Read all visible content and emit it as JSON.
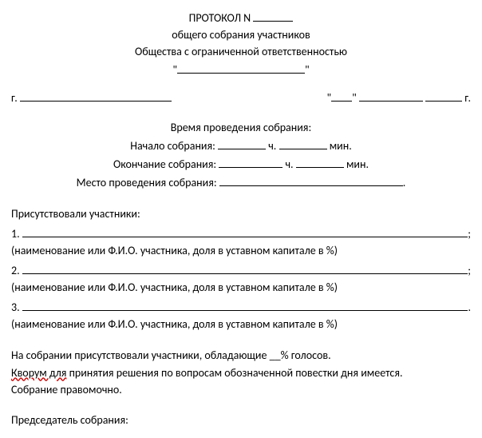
{
  "header": {
    "protocol_label": "ПРОТОКОЛ N",
    "line2": "общего собрания участников",
    "line3": "Общества с ограниченной ответственностью",
    "quote_open": "\"",
    "quote_close": "\""
  },
  "city_prefix": "г.",
  "date": {
    "q1": "\"",
    "q2": "\"",
    "year_suffix": "г."
  },
  "time": {
    "title": "Время проведения собрания:",
    "start_label": "Начало собрания:",
    "end_label": "Окончание собрания:",
    "hour_suffix": "ч.",
    "min_suffix": "мин."
  },
  "place_label": "Место проведения собрания:",
  "attend_title": "Присутствовали участники:",
  "items": {
    "1": "1.",
    "2": "2.",
    "3": "3."
  },
  "hint": "(наименование или Ф.И.О. участника, доля в уставном капитале в %)",
  "trail_semi": ";",
  "votes_line": "На собрании присутствовали участники, обладающие __% голосов.",
  "quorum1": "Кворум для",
  "quorum2": " принятия решения по вопросам обозначенной повестки дня имеется.",
  "competent": "Собрание правомочно.",
  "chair_label": "Председатель собрания:"
}
